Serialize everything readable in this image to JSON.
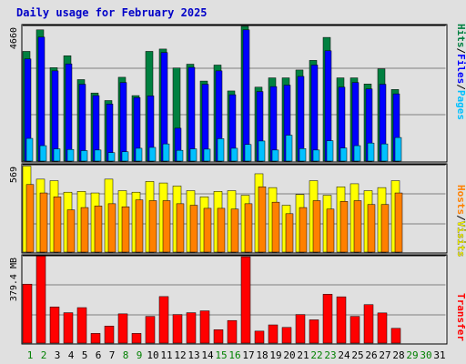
{
  "title": "Daily usage for February 2025",
  "legend": {
    "hits": "Hits",
    "files": "Files",
    "pages": "Pages",
    "hosts": "Hosts",
    "visits": "Visits",
    "transfer": "Transfer",
    "sep": "/"
  },
  "colors": {
    "hits": "#008040",
    "files": "#0000ff",
    "pages": "#00c0ff",
    "visits": "#ffff00",
    "hosts": "#ff8000",
    "transfer": "#ff0000",
    "day_weekend": "#008000",
    "day_weekday": "#000000",
    "day_future": "#008000"
  },
  "chart_data": [
    {
      "type": "bar",
      "panel": "hits-files-pages",
      "ylabel_max": "4660",
      "ylim": [
        0,
        4660
      ],
      "categories": [
        "1",
        "2",
        "3",
        "4",
        "5",
        "6",
        "7",
        "8",
        "9",
        "10",
        "11",
        "12",
        "13",
        "14",
        "15",
        "16",
        "17",
        "18",
        "19",
        "20",
        "21",
        "22",
        "23",
        "24",
        "25",
        "26",
        "27",
        "28",
        "29",
        "30",
        "31"
      ],
      "series": [
        {
          "name": "Hits",
          "values": [
            3770,
            4510,
            3210,
            3620,
            2800,
            2340,
            2080,
            2880,
            2250,
            3770,
            3850,
            3200,
            3330,
            2750,
            3300,
            2410,
            4630,
            2540,
            2860,
            2860,
            3130,
            3460,
            4250,
            2860,
            2860,
            2650,
            3170,
            2460,
            0,
            0,
            0
          ]
        },
        {
          "name": "Files",
          "values": [
            3510,
            4260,
            3100,
            3340,
            2640,
            2250,
            1960,
            2700,
            2180,
            2240,
            3730,
            1130,
            3220,
            2640,
            3100,
            2280,
            4510,
            2390,
            2560,
            2610,
            2910,
            3300,
            3790,
            2540,
            2700,
            2480,
            2640,
            2310,
            0,
            0,
            0
          ]
        },
        {
          "name": "Pages",
          "values": [
            780,
            530,
            420,
            400,
            360,
            380,
            290,
            320,
            440,
            470,
            590,
            370,
            420,
            410,
            770,
            440,
            570,
            690,
            380,
            890,
            430,
            380,
            700,
            450,
            530,
            620,
            590,
            810,
            0,
            0,
            0
          ]
        }
      ]
    },
    {
      "type": "bar",
      "panel": "visits-hosts",
      "ylabel_max": "569",
      "ylim": [
        0,
        569
      ],
      "categories": [
        "1",
        "2",
        "3",
        "4",
        "5",
        "6",
        "7",
        "8",
        "9",
        "10",
        "11",
        "12",
        "13",
        "14",
        "15",
        "16",
        "17",
        "18",
        "19",
        "20",
        "21",
        "22",
        "23",
        "24",
        "25",
        "26",
        "27",
        "28",
        "29",
        "30",
        "31"
      ],
      "series": [
        {
          "name": "Visits",
          "values": [
            560,
            475,
            465,
            390,
            395,
            385,
            475,
            400,
            390,
            460,
            450,
            430,
            400,
            360,
            395,
            400,
            370,
            510,
            420,
            305,
            375,
            465,
            370,
            425,
            445,
            400,
            420,
            465,
            0,
            0,
            0
          ]
        },
        {
          "name": "Hosts",
          "values": [
            440,
            385,
            360,
            275,
            290,
            300,
            315,
            295,
            340,
            335,
            335,
            315,
            305,
            285,
            285,
            280,
            315,
            425,
            325,
            250,
            290,
            335,
            280,
            330,
            335,
            310,
            310,
            385,
            0,
            0,
            0
          ]
        }
      ]
    },
    {
      "type": "bar",
      "panel": "transfer",
      "ylabel_max": "379.4 MB",
      "ylim": [
        0,
        379.4
      ],
      "categories": [
        "1",
        "2",
        "3",
        "4",
        "5",
        "6",
        "7",
        "8",
        "9",
        "10",
        "11",
        "12",
        "13",
        "14",
        "15",
        "16",
        "17",
        "18",
        "19",
        "20",
        "21",
        "22",
        "23",
        "24",
        "25",
        "26",
        "27",
        "28",
        "29",
        "30",
        "31"
      ],
      "series": [
        {
          "name": "Transfer",
          "values": [
            256,
            378,
            157,
            132,
            154,
            42,
            74,
            127,
            42,
            116,
            202,
            124,
            132,
            140,
            58,
            98,
            375,
            52,
            79,
            68,
            124,
            101,
            212,
            201,
            116,
            167,
            131,
            64,
            0,
            0,
            0
          ]
        }
      ]
    }
  ],
  "days": [
    {
      "label": "1",
      "kind": "weekend"
    },
    {
      "label": "2",
      "kind": "weekend"
    },
    {
      "label": "3",
      "kind": "weekday"
    },
    {
      "label": "4",
      "kind": "weekday"
    },
    {
      "label": "5",
      "kind": "weekday"
    },
    {
      "label": "6",
      "kind": "weekday"
    },
    {
      "label": "7",
      "kind": "weekday"
    },
    {
      "label": "8",
      "kind": "weekend"
    },
    {
      "label": "9",
      "kind": "weekend"
    },
    {
      "label": "10",
      "kind": "weekday"
    },
    {
      "label": "11",
      "kind": "weekday"
    },
    {
      "label": "12",
      "kind": "weekday"
    },
    {
      "label": "13",
      "kind": "weekday"
    },
    {
      "label": "14",
      "kind": "weekday"
    },
    {
      "label": "15",
      "kind": "weekend"
    },
    {
      "label": "16",
      "kind": "weekend"
    },
    {
      "label": "17",
      "kind": "weekday"
    },
    {
      "label": "18",
      "kind": "weekday"
    },
    {
      "label": "19",
      "kind": "weekday"
    },
    {
      "label": "20",
      "kind": "weekday"
    },
    {
      "label": "21",
      "kind": "weekday"
    },
    {
      "label": "22",
      "kind": "weekend"
    },
    {
      "label": "23",
      "kind": "weekend"
    },
    {
      "label": "24",
      "kind": "weekday"
    },
    {
      "label": "25",
      "kind": "weekday"
    },
    {
      "label": "26",
      "kind": "weekday"
    },
    {
      "label": "27",
      "kind": "weekday"
    },
    {
      "label": "28",
      "kind": "weekday"
    },
    {
      "label": "29",
      "kind": "future"
    },
    {
      "label": "30",
      "kind": "future"
    },
    {
      "label": "31",
      "kind": "weekday"
    }
  ]
}
